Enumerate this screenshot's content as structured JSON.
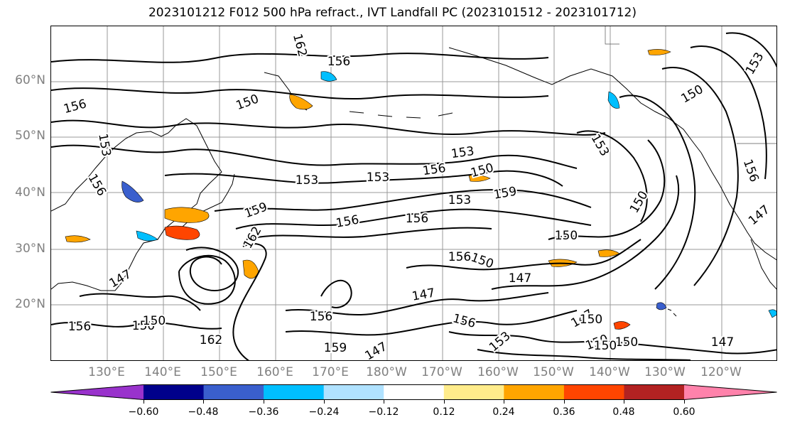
{
  "title": "2023101212 F012 500 hPa refract., IVT Landfall PC (2023101512 - 2023101712)",
  "lat_labels": [
    "60°N",
    "50°N",
    "40°N",
    "30°N",
    "20°N"
  ],
  "lon_labels": [
    "130°E",
    "140°E",
    "150°E",
    "160°E",
    "170°E",
    "180°W",
    "170°W",
    "160°W",
    "150°W",
    "140°W",
    "130°W",
    "120°W"
  ],
  "contour_labels": [
    "162",
    "153",
    "156",
    "150",
    "156",
    "153",
    "156",
    "153",
    "159",
    "153",
    "156",
    "156",
    "150",
    "150",
    "153",
    "156",
    "150",
    "147",
    "159",
    "162",
    "156",
    "150",
    "147",
    "147",
    "150",
    "156",
    "156",
    "150",
    "147",
    "150",
    "150",
    "147",
    "153",
    "150",
    "153",
    "156",
    "150",
    "147",
    "162",
    "150",
    "159",
    "147",
    "156",
    "153"
  ],
  "colorbar": {
    "ticks": [
      "−0.60",
      "−0.48",
      "−0.36",
      "−0.24",
      "−0.12",
      "0.12",
      "0.24",
      "0.36",
      "0.48",
      "0.60"
    ],
    "colors": [
      "#9932cc",
      "#00008b",
      "#3a5fcd",
      "#00bfff",
      "#b0e2ff",
      "#ffffff",
      "#ffec8b",
      "#ffa500",
      "#ff4500",
      "#b22222",
      "#ff82ab"
    ]
  }
}
